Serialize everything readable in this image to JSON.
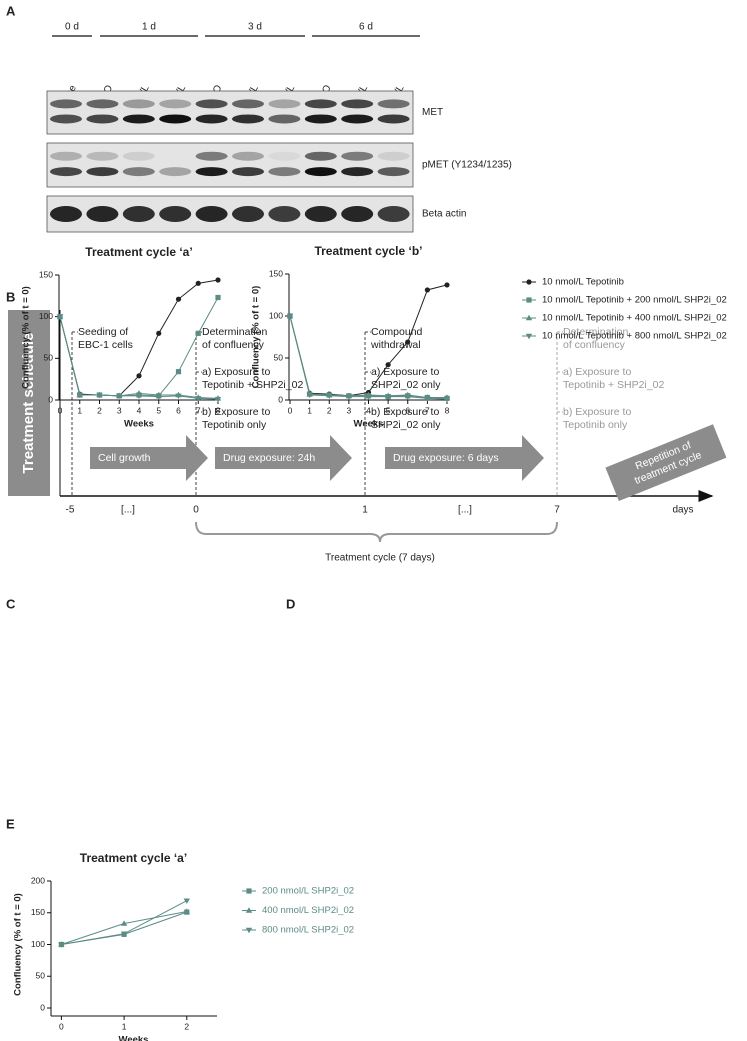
{
  "panels": [
    "A",
    "B",
    "C",
    "D",
    "E"
  ],
  "blot": {
    "groups": [
      "0 d",
      "1 d",
      "3 d",
      "6 d"
    ],
    "lanes": [
      "Baseline",
      "DMSO",
      "5 nmol/L",
      "10 nmol/L",
      "DMSO",
      "5 nmol/L",
      "10 nmol/L",
      "DMSO",
      "5 nmol/L",
      "10 nmol/L"
    ],
    "rows": [
      "MET",
      "pMET (Y1234/1235)",
      "Beta actin"
    ]
  },
  "schedule": {
    "title": "Treatment schedule",
    "steps": [
      [
        "Seeding of",
        "EBC-1 cells"
      ],
      [
        "Determination",
        "of confluency",
        "a) Exposure to",
        "Tepotinib + SHP2i_02",
        "b) Exposure to",
        "Tepotinib only"
      ],
      [
        "Compound",
        "withdrawal",
        "a) Exposure to",
        "SHP2i_02 only",
        "b) Exposure to",
        "SHP2i_02 only"
      ],
      [
        "Determination",
        "of confluency",
        "a) Exposure to",
        "Tepotinib + SHP2i_02",
        "b) Exposure to",
        "Tepotinib only"
      ]
    ],
    "arrows": [
      "Cell growth",
      "Drug exposure: 24h",
      "Drug exposure: 6 days"
    ],
    "repeat": [
      "Repetition of",
      "treatment cycle"
    ],
    "axis_labels": [
      "-5",
      "[...]",
      "0",
      "1",
      "[...]",
      "7"
    ],
    "axis_unit": "days",
    "cycle_label": "Treatment cycle (7 days)"
  },
  "chart_data": [
    {
      "type": "line",
      "title": "Treatment cycle ‘a’",
      "xlabel": "Weeks",
      "ylabel": "Confluency (% of t = 0)",
      "x": [
        0,
        1,
        2,
        3,
        4,
        5,
        6,
        7,
        8
      ],
      "xlim": [
        0,
        8
      ],
      "xticks": [
        0,
        1,
        2,
        3,
        4,
        5,
        6,
        7,
        8
      ],
      "ylim": [
        0,
        150
      ],
      "yticks": [
        0,
        50,
        100,
        150
      ],
      "series": [
        {
          "color": "#222222",
          "marker": "circle",
          "values": [
            100,
            7,
            6,
            5,
            29,
            80,
            121,
            140,
            144
          ]
        },
        {
          "color": "#5b8c86",
          "marker": "square",
          "values": [
            100,
            6,
            6,
            5,
            6,
            5,
            34,
            80,
            123
          ]
        },
        {
          "color": "#5b8c86",
          "marker": "triangle-up",
          "values": [
            100,
            6,
            6,
            5,
            8,
            6,
            6,
            3,
            2
          ]
        },
        {
          "color": "#5b8c86",
          "marker": "triangle-down",
          "values": [
            100,
            6,
            6,
            5,
            5,
            4,
            5,
            2,
            1
          ]
        }
      ]
    },
    {
      "type": "line",
      "title": "Treatment cycle ‘b’",
      "xlabel": "Weeks",
      "ylabel": "Confluency (% of t = 0)",
      "x": [
        0,
        1,
        2,
        3,
        4,
        5,
        6,
        7,
        8
      ],
      "xlim": [
        0,
        8
      ],
      "xticks": [
        0,
        1,
        2,
        3,
        4,
        5,
        6,
        7,
        8
      ],
      "ylim": [
        0,
        150
      ],
      "yticks": [
        0,
        50,
        100,
        150
      ],
      "legend": "right",
      "series": [
        {
          "name": "10 nmol/L Tepotinib",
          "color": "#222222",
          "marker": "circle",
          "values": [
            100,
            8,
            7,
            5,
            9,
            42,
            69,
            131,
            137
          ]
        },
        {
          "name": "10 nmol/L Tepotinib + 200 nmol/L SHP2i_02",
          "color": "#5b8c86",
          "marker": "square",
          "values": [
            100,
            7,
            6,
            5,
            5,
            4,
            5,
            3,
            2
          ]
        },
        {
          "name": "10 nmol/L Tepotinib + 400 nmol/L SHP2i_02",
          "color": "#5b8c86",
          "marker": "triangle-up",
          "values": [
            100,
            7,
            6,
            5,
            6,
            5,
            6,
            3,
            3
          ]
        },
        {
          "name": "10 nmol/L Tepotinib + 800 nmol/L SHP2i_02",
          "color": "#5b8c86",
          "marker": "triangle-down",
          "values": [
            100,
            6,
            5,
            4,
            4,
            4,
            4,
            2,
            1
          ]
        }
      ]
    },
    {
      "type": "line",
      "title": "Treatment cycle ‘a’",
      "xlabel": "Weeks",
      "ylabel": "Confluency (% of t = 0)",
      "x": [
        0,
        1,
        2
      ],
      "xlim": [
        -0.15,
        2.45
      ],
      "xticks": [
        0,
        1,
        2
      ],
      "ylim": [
        0,
        200
      ],
      "yticks": [
        0,
        50,
        100,
        150,
        200
      ],
      "legend": "right",
      "series": [
        {
          "name": "200 nmol/L SHP2i_02",
          "color": "#5b8c86",
          "marker": "square",
          "values": [
            100,
            116,
            151
          ]
        },
        {
          "name": "400 nmol/L SHP2i_02",
          "color": "#5b8c86",
          "marker": "triangle-up",
          "values": [
            100,
            133,
            152
          ]
        },
        {
          "name": "800 nmol/L SHP2i_02",
          "color": "#5b8c86",
          "marker": "triangle-down",
          "values": [
            100,
            117,
            169
          ]
        }
      ]
    }
  ]
}
